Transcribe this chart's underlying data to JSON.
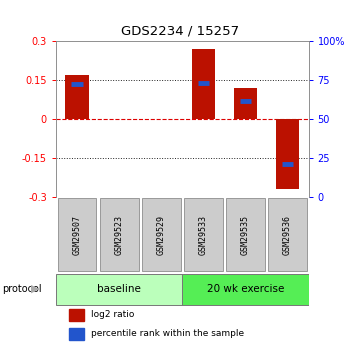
{
  "title": "GDS2234 / 15257",
  "samples": [
    "GSM29507",
    "GSM29523",
    "GSM29529",
    "GSM29533",
    "GSM29535",
    "GSM29536"
  ],
  "log2_ratios": [
    0.17,
    0.0,
    0.0,
    0.27,
    0.12,
    -0.27
  ],
  "percentile_ranks_log2": [
    0.135,
    0.0,
    0.0,
    0.14,
    0.07,
    -0.175
  ],
  "ylim": [
    -0.3,
    0.3
  ],
  "yticks_left": [
    -0.3,
    -0.15,
    0,
    0.15,
    0.3
  ],
  "ytick_left_labels": [
    "-0.3",
    "-0.15",
    "0",
    "0.15",
    "0.3"
  ],
  "yticks_right_pct": [
    0,
    25,
    50,
    75,
    100
  ],
  "ytick_right_labels": [
    "0",
    "25",
    "50",
    "75",
    "100%"
  ],
  "hlines_dotted": [
    0.15,
    -0.15
  ],
  "hline_zero_color": "#dd0000",
  "bar_color": "#bb1100",
  "blue_color": "#2255cc",
  "bar_width": 0.55,
  "group_baseline_color": "#bbffbb",
  "group_exercise_color": "#55ee55",
  "protocol_label": "protocol",
  "legend_items": [
    {
      "color": "#bb1100",
      "label": "log2 ratio"
    },
    {
      "color": "#2255cc",
      "label": "percentile rank within the sample"
    }
  ],
  "bg_color": "#ffffff"
}
